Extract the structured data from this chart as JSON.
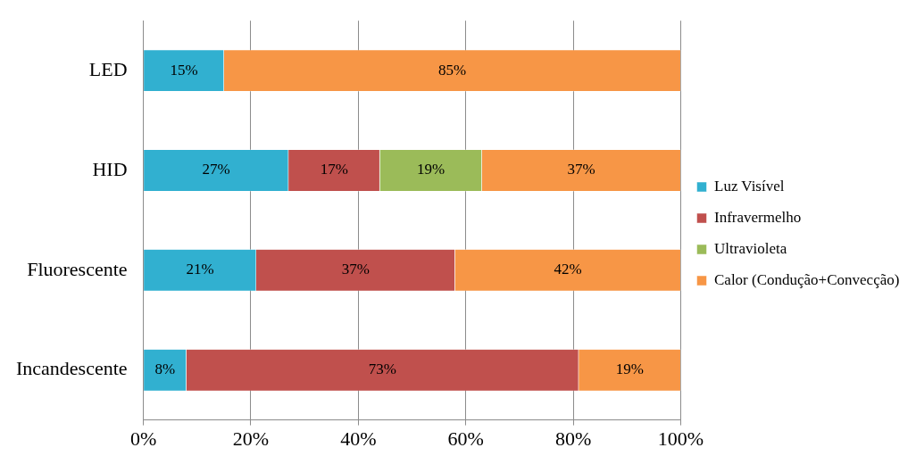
{
  "chart_data": {
    "type": "bar",
    "orientation": "horizontal",
    "stacked": true,
    "categories": [
      "LED",
      "HID",
      "Fluorescente",
      "Incandescente"
    ],
    "series": [
      {
        "name": "Luz Visível",
        "color": "#31b0d0",
        "values": [
          15,
          27,
          21,
          8
        ],
        "value_labels": [
          "15%",
          "27%",
          "21%",
          "8%"
        ]
      },
      {
        "name": "Infravermelho",
        "color": "#c0504d",
        "values": [
          null,
          17,
          37,
          73
        ],
        "value_labels": [
          null,
          "17%",
          "37%",
          "73%"
        ]
      },
      {
        "name": "Ultravioleta",
        "color": "#9bbb59",
        "values": [
          null,
          19,
          null,
          null
        ],
        "value_labels": [
          null,
          "19%",
          null,
          null
        ]
      },
      {
        "name": "Calor (Condução+Convecção)",
        "color": "#f79646",
        "values": [
          85,
          37,
          42,
          19
        ],
        "value_labels": [
          "85%",
          "37%",
          "42%",
          "19%"
        ]
      }
    ],
    "xlim": [
      0,
      100
    ],
    "xticks": [
      {
        "value": 0,
        "label": "0%"
      },
      {
        "value": 20,
        "label": "20%"
      },
      {
        "value": 40,
        "label": "40%"
      },
      {
        "value": 60,
        "label": "60%"
      },
      {
        "value": 80,
        "label": "80%"
      },
      {
        "value": 100,
        "label": "100%"
      }
    ],
    "grid": "x",
    "legend": "right"
  }
}
